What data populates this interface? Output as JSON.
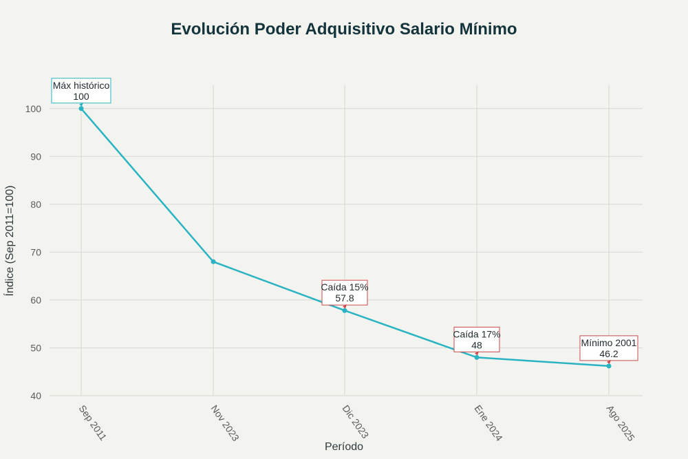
{
  "chart_data": {
    "type": "line",
    "title": "Evolución Poder Adquisitivo Salario Mínimo",
    "xlabel": "Período",
    "ylabel": "Índice (Sep 2011=100)",
    "categories": [
      "Sep 2011",
      "Nov 2023",
      "Dic 2023",
      "Ene 2024",
      "Ago 2025"
    ],
    "series": [
      {
        "values": [
          100,
          68,
          57.8,
          48,
          46.2
        ],
        "color": "#2ab3c3"
      }
    ],
    "ylim": [
      40,
      105
    ],
    "yticks": [
      40,
      50,
      60,
      70,
      80,
      90,
      100
    ],
    "grid": true,
    "annotations": [
      {
        "index": 0,
        "label": "Máx histórico",
        "value": "100",
        "border": "#2ab3c3"
      },
      {
        "index": 2,
        "label": "Caída 15%",
        "value": "57.8",
        "border": "#c9494b"
      },
      {
        "index": 3,
        "label": "Caída 17%",
        "value": "48",
        "border": "#c9494b"
      },
      {
        "index": 4,
        "label": "Mínimo 2001",
        "value": "46.2",
        "border": "#c9494b"
      }
    ]
  }
}
